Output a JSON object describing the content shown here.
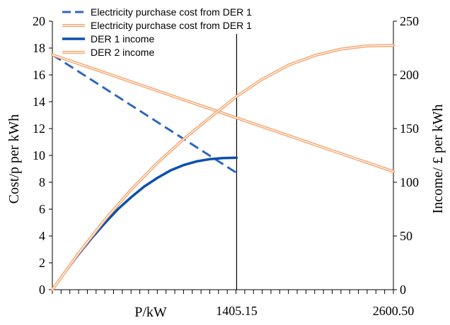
{
  "chart_data": {
    "type": "line",
    "xlabel": "P/kW",
    "x_tick_labels": [
      {
        "value": 1405.15,
        "label": "1405.15"
      },
      {
        "value": 2600.5,
        "label": "2600.50"
      }
    ],
    "xlim": [
      0,
      2600.5
    ],
    "vline": {
      "x": 1405.15
    },
    "y_left": {
      "label": "Cost/p per kWh",
      "lim": [
        0,
        20
      ],
      "ticks": [
        0,
        2,
        4,
        6,
        8,
        10,
        12,
        14,
        16,
        18,
        20
      ]
    },
    "y_right": {
      "label": "Income/ £ per kWh",
      "lim": [
        0,
        250
      ],
      "ticks": [
        0,
        50,
        100,
        150,
        200,
        250
      ]
    },
    "colors": {
      "der1": "#1f5fb4",
      "der2_outer": "#f4a46c",
      "der2_inner": "#ffffff",
      "axis": "#000000"
    },
    "legend_position": "top-left",
    "series": [
      {
        "name": "Electricity purchase cost from DER 1",
        "axis": "left",
        "style": "dashed",
        "color": "#2f67c0",
        "x": [
          0,
          1405.15
        ],
        "y": [
          17.5,
          8.7
        ]
      },
      {
        "name": "Electricity purchase cost from DER 1",
        "axis": "left",
        "style": "double",
        "color": "#f4a46c",
        "x": [
          0,
          2600.5
        ],
        "y": [
          17.5,
          8.8
        ]
      },
      {
        "name": "DER 1 income",
        "axis": "right",
        "style": "solid",
        "color": "#0a4fb0",
        "x": [
          0,
          100,
          200,
          300,
          400,
          500,
          600,
          700,
          800,
          900,
          1000,
          1100,
          1200,
          1300,
          1405.15
        ],
        "y": [
          0,
          17,
          33,
          48,
          62,
          75,
          86,
          96,
          104,
          111,
          116,
          119.5,
          121.5,
          122.5,
          122.8
        ]
      },
      {
        "name": "DER 2 income",
        "axis": "right",
        "style": "double",
        "color": "#f4a46c",
        "x": [
          0,
          200,
          400,
          600,
          800,
          1000,
          1200,
          1405,
          1600,
          1800,
          2000,
          2200,
          2400,
          2600.5
        ],
        "y": [
          0,
          34,
          65,
          93,
          118,
          140,
          160,
          180,
          196,
          209,
          218,
          224,
          227,
          227.5
        ]
      }
    ]
  }
}
